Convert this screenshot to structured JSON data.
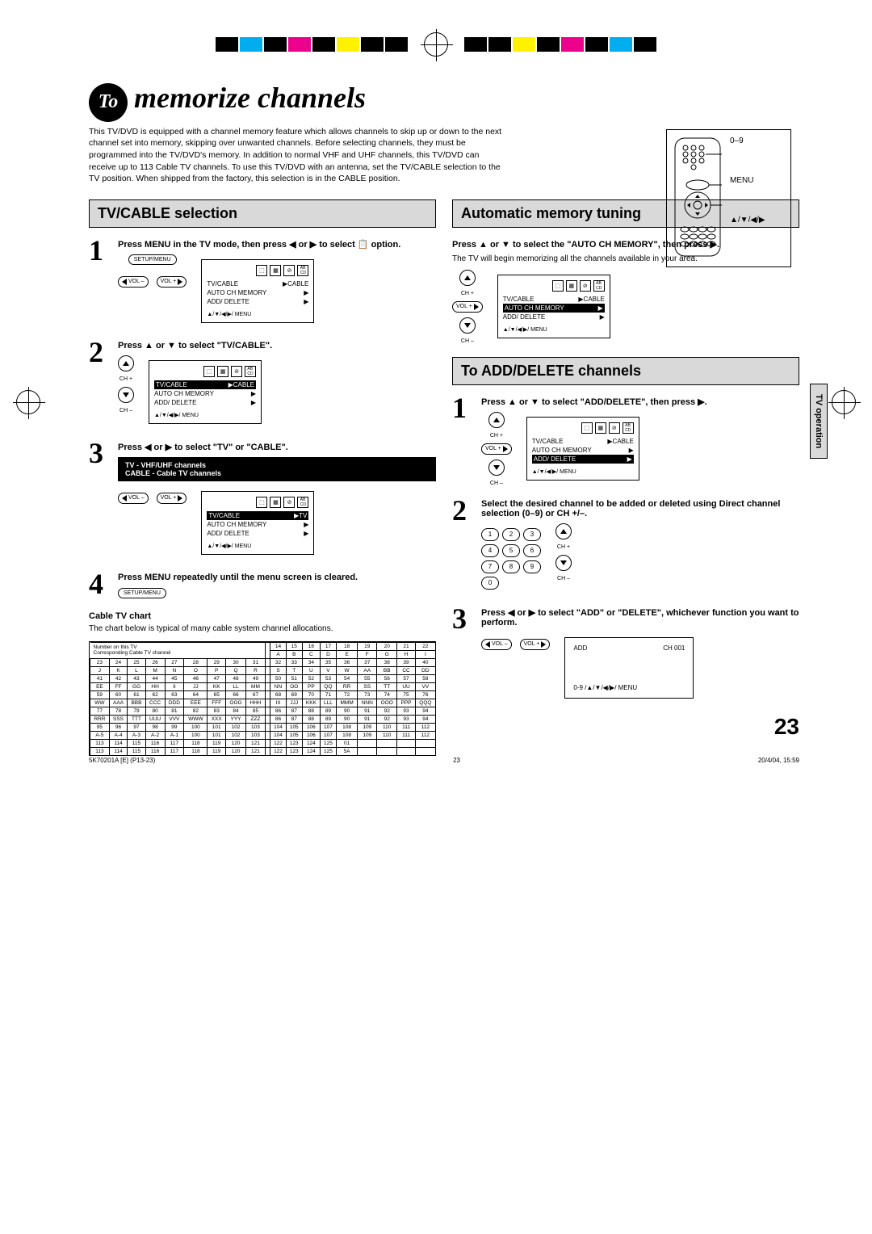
{
  "title_prefix": "To",
  "title": "memorize channels",
  "intro": "This TV/DVD is equipped with a channel memory feature which allows channels to skip up or down to the next channel set into memory, skipping over unwanted channels. Before selecting channels, they must be programmed into the TV/DVD's memory. In addition to normal VHF and UHF channels, this TV/DVD can receive up to 113 Cable TV channels. To use this TV/DVD with an antenna, set the TV/CABLE selection to the TV position. When shipped from the factory, this selection is in the CABLE position.",
  "remote_labels": [
    "0–9",
    "MENU",
    "▲/▼/◀/▶"
  ],
  "side_tab": "TV operation",
  "sections": {
    "tvcable": {
      "title": "TV/CABLE selection",
      "steps": [
        {
          "num": "1",
          "text": "Press MENU in the TV mode, then press ◀ or ▶ to select 📋 option."
        },
        {
          "num": "2",
          "text": "Press ▲ or ▼ to select \"TV/CABLE\"."
        },
        {
          "num": "3",
          "text": "Press ◀ or ▶ to select \"TV\" or \"CABLE\"."
        },
        {
          "num": "4",
          "text": "Press MENU repeatedly until the menu screen is cleared."
        }
      ],
      "info_box": [
        "TV - VHF/UHF channels",
        "CABLE - Cable TV channels"
      ],
      "chart_title": "Cable TV chart",
      "chart_desc": "The chart below is typical of many cable system channel allocations.",
      "chart_header1": "Number on this TV",
      "chart_header2": "Corresponding Cable TV channel"
    },
    "auto": {
      "title": "Automatic memory tuning",
      "step1_text": "Press ▲ or ▼ to select the \"AUTO CH MEMORY\", then press ▶.",
      "step1_sub": "The TV will begin memorizing all the channels available in your area."
    },
    "adddelete": {
      "title": "To ADD/DELETE channels",
      "steps": [
        {
          "num": "1",
          "text": "Press ▲ or ▼ to select \"ADD/DELETE\", then press ▶."
        },
        {
          "num": "2",
          "text": "Select the desired channel to be added or deleted using Direct channel selection (0–9) or CH +/–."
        },
        {
          "num": "3",
          "text": "Press ◀ or ▶ to select \"ADD\" or \"DELETE\", whichever function you want to perform."
        }
      ],
      "add_box": {
        "left": "ADD",
        "right": "CH 001",
        "footer": "0-9 /▲/▼/◀/▶/ MENU"
      }
    }
  },
  "menu": {
    "items": [
      "TV/CABLE",
      "AUTO CH MEMORY",
      "ADD/ DELETE"
    ],
    "right_cable": "▶CABLE",
    "right_tv": "▶TV",
    "right_arrow": "▶",
    "footer": "▲/▼/◀/▶/ MENU"
  },
  "buttons": {
    "setup_menu": "SETUP/MENU",
    "vol_minus": "VOL –",
    "vol_plus": "VOL +",
    "ch_plus": "CH +",
    "ch_minus": "CH –"
  },
  "cable_chart": {
    "row1_top": [
      "23",
      "24",
      "25",
      "26",
      "27",
      "28",
      "29",
      "30",
      "31",
      "",
      "32",
      "33",
      "34",
      "35",
      "36",
      "37",
      "38",
      "39",
      "40"
    ],
    "row1_bot": [
      "J",
      "K",
      "L",
      "M",
      "N",
      "O",
      "P",
      "Q",
      "R",
      "",
      "S",
      "T",
      "U",
      "V",
      "W",
      "AA",
      "BB",
      "CC",
      "DD"
    ],
    "row_hdr_top": [
      "14",
      "15",
      "16",
      "17",
      "18",
      "19",
      "20",
      "21",
      "22"
    ],
    "row_hdr_bot": [
      "A",
      "B",
      "C",
      "D",
      "E",
      "F",
      "G",
      "H",
      "I"
    ],
    "row2_top": [
      "41",
      "42",
      "43",
      "44",
      "45",
      "46",
      "47",
      "48",
      "49",
      "",
      "50",
      "51",
      "52",
      "53",
      "54",
      "55",
      "56",
      "57",
      "58"
    ],
    "row2_bot": [
      "EE",
      "FF",
      "GG",
      "HH",
      "II",
      "JJ",
      "KK",
      "LL",
      "MM",
      "",
      "NN",
      "OO",
      "PP",
      "QQ",
      "RR",
      "SS",
      "TT",
      "UU",
      "VV"
    ],
    "row3_top": [
      "59",
      "60",
      "61",
      "62",
      "63",
      "64",
      "65",
      "66",
      "67",
      "",
      "68",
      "69",
      "70",
      "71",
      "72",
      "73",
      "74",
      "75",
      "76"
    ],
    "row3_bot": [
      "WW",
      "AAA",
      "BBB",
      "CCC",
      "DDD",
      "EEE",
      "FFF",
      "GGG",
      "HHH",
      "",
      "III",
      "JJJ",
      "KKK",
      "LLL",
      "MMM",
      "NNN",
      "OOO",
      "PPP",
      "QQQ"
    ],
    "row4_top": [
      "77",
      "78",
      "79",
      "80",
      "81",
      "82",
      "83",
      "84",
      "85",
      "",
      "86",
      "87",
      "88",
      "89",
      "90",
      "91",
      "92",
      "93",
      "94"
    ],
    "row4_bot": [
      "RRR",
      "SSS",
      "TTT",
      "UUU",
      "VVV",
      "WWW",
      "XXX",
      "YYY",
      "ZZZ",
      "",
      "86",
      "87",
      "88",
      "89",
      "90",
      "91",
      "92",
      "93",
      "94"
    ],
    "row5_top": [
      "95",
      "96",
      "97",
      "98",
      "99",
      "100",
      "101",
      "102",
      "103",
      "",
      "104",
      "105",
      "106",
      "107",
      "108",
      "109",
      "110",
      "111",
      "112"
    ],
    "row5_bot": [
      "A-5",
      "A-4",
      "A-3",
      "A-2",
      "A-1",
      "100",
      "101",
      "102",
      "103",
      "",
      "104",
      "105",
      "106",
      "107",
      "108",
      "109",
      "110",
      "111",
      "112"
    ],
    "row6_top": [
      "113",
      "114",
      "115",
      "116",
      "117",
      "118",
      "119",
      "120",
      "121",
      "",
      "122",
      "123",
      "124",
      "125",
      "01",
      "",
      "",
      "",
      ""
    ],
    "row6_bot": [
      "113",
      "114",
      "115",
      "116",
      "117",
      "118",
      "119",
      "120",
      "121",
      "",
      "122",
      "123",
      "124",
      "125",
      "5A",
      "",
      "",
      "",
      ""
    ]
  },
  "page_num": "23",
  "footer_left": "5K70201A [E] (P13-23)",
  "footer_center": "23",
  "footer_right": "20/4/04, 15:59"
}
